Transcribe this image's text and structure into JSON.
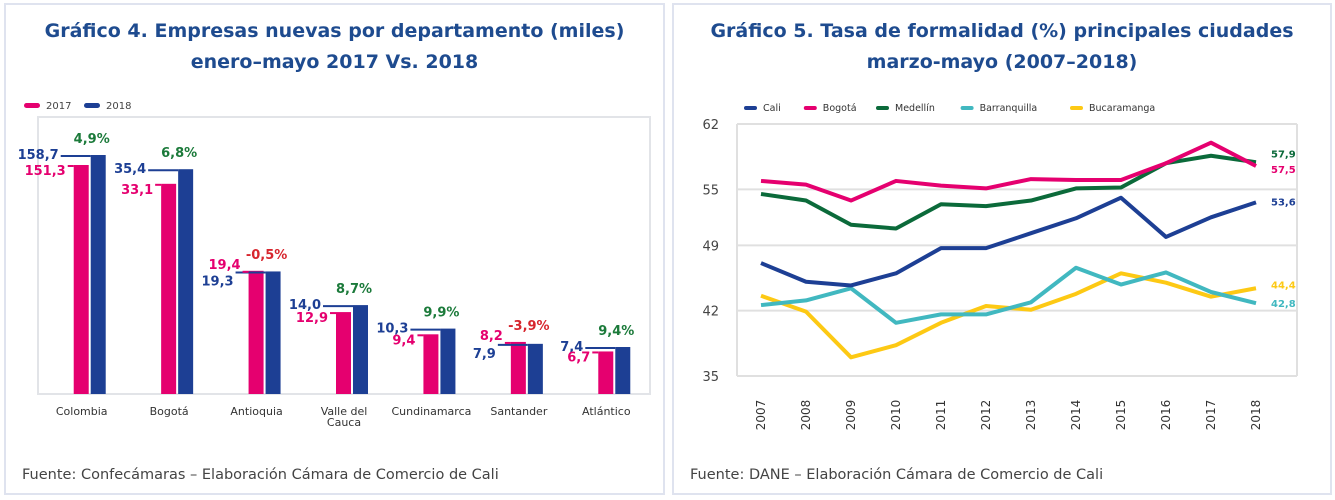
{
  "chart_data": [
    {
      "type": "bar",
      "title": "Gráfico 4. Empresas nuevas por departamento (miles)",
      "subtitle": "enero–mayo 2017 Vs. 2018",
      "categories": [
        "Colombia",
        "Bogotá",
        "Antioquia",
        "Valle del Cauca",
        "Cundinamarca",
        "Santander",
        "Atlántico"
      ],
      "category_lines": [
        [
          "Colombia"
        ],
        [
          "Bogotá"
        ],
        [
          "Antioquia"
        ],
        [
          "Valle del",
          "Cauca"
        ],
        [
          "Cundinamarca"
        ],
        [
          "Santander"
        ],
        [
          "Atlántico"
        ]
      ],
      "series": [
        {
          "name": "2017",
          "color": "#e5006f",
          "values": [
            151.3,
            33.1,
            19.4,
            12.9,
            9.4,
            8.2,
            6.7
          ],
          "labels": [
            "151,3",
            "33,1",
            "19,4",
            "12,9",
            "9,4",
            "8,2",
            "6,7"
          ]
        },
        {
          "name": "2018",
          "color": "#1d3f94",
          "values": [
            158.7,
            35.4,
            19.3,
            14.0,
            10.3,
            7.9,
            7.4
          ],
          "labels": [
            "158,7",
            "35,4",
            "19,3",
            "14,0",
            "10,3",
            "7,9",
            "7,4"
          ]
        }
      ],
      "changes": [
        {
          "label": "4,9%",
          "value": 4.9,
          "color": "#1b7a3a"
        },
        {
          "label": "6,8%",
          "value": 6.8,
          "color": "#1b7a3a"
        },
        {
          "label": "-0,5%",
          "value": -0.5,
          "color": "#d7262e"
        },
        {
          "label": "8,7%",
          "value": 8.7,
          "color": "#1b7a3a"
        },
        {
          "label": "9,9%",
          "value": 9.9,
          "color": "#1b7a3a"
        },
        {
          "label": "-3,9%",
          "value": -3.9,
          "color": "#d7262e"
        },
        {
          "label": "9,4%",
          "value": 9.4,
          "color": "#1b7a3a"
        }
      ],
      "legend": "top-left",
      "grid": false,
      "source": "Fuente: Confecámaras – Elaboración Cámara de Comercio de Cali"
    },
    {
      "type": "line",
      "title": "Gráfico 5. Tasa de formalidad (%) principales ciudades",
      "subtitle": "marzo-mayo (2007–2018)",
      "x": [
        "2007",
        "2008",
        "2009",
        "2010",
        "2011",
        "2012",
        "2013",
        "2014",
        "2015",
        "2016",
        "2017",
        "2018"
      ],
      "ylim": [
        35,
        62
      ],
      "yticks": [
        35,
        42,
        49,
        55,
        62
      ],
      "grid": true,
      "legend": "top-left",
      "series": [
        {
          "name": "Cali",
          "color": "#1d3f94",
          "values": [
            47.1,
            45.1,
            44.7,
            46.0,
            48.7,
            48.7,
            50.3,
            51.9,
            54.1,
            49.9,
            52.0,
            53.6
          ],
          "end_label": "53,6"
        },
        {
          "name": "Bogotá",
          "color": "#e5006f",
          "values": [
            55.9,
            55.5,
            53.8,
            55.9,
            55.4,
            55.1,
            56.1,
            56.0,
            56.0,
            57.8,
            60.0,
            57.5
          ],
          "end_label": "57,5"
        },
        {
          "name": "Medellín",
          "color": "#0b6a3a",
          "values": [
            54.5,
            53.8,
            51.2,
            50.8,
            53.4,
            53.2,
            53.8,
            55.1,
            55.2,
            57.8,
            58.6,
            57.9
          ],
          "end_label": "57,9"
        },
        {
          "name": "Barranquilla",
          "color": "#41b8c0",
          "values": [
            42.6,
            43.1,
            44.4,
            40.7,
            41.6,
            41.6,
            42.9,
            46.6,
            44.8,
            46.1,
            44.0,
            42.8
          ],
          "end_label": "42,8"
        },
        {
          "name": "Bucaramanga",
          "color": "#fdc914",
          "values": [
            43.6,
            41.9,
            37.0,
            38.3,
            40.7,
            42.5,
            42.1,
            43.8,
            46.0,
            45.0,
            43.5,
            44.4
          ],
          "end_label": "44,4"
        }
      ],
      "source": "Fuente: DANE – Elaboración Cámara de Comercio de Cali"
    }
  ]
}
